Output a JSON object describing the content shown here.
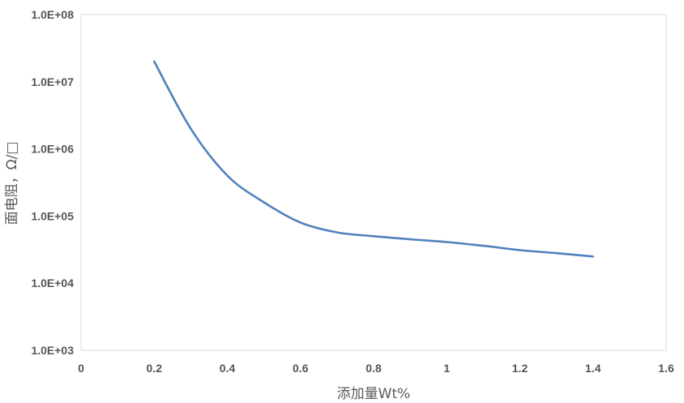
{
  "chart_data": {
    "type": "line",
    "title": "",
    "xlabel": "添加量Wt%",
    "ylabel": "面电阻，Ω/□",
    "xlim": [
      0,
      1.6
    ],
    "ylim": [
      1000,
      100000000
    ],
    "y_scale": "log",
    "x_ticks": [
      0,
      0.2,
      0.4,
      0.6,
      0.8,
      1,
      1.2,
      1.4,
      1.6
    ],
    "x_tick_labels": [
      "0",
      "0.2",
      "0.4",
      "0.6",
      "0.8",
      "1",
      "1.2",
      "1.4",
      "1.6"
    ],
    "y_ticks": [
      1000,
      10000,
      100000,
      1000000,
      10000000,
      100000000
    ],
    "y_tick_labels": [
      "1.0E+03",
      "1.0E+04",
      "1.0E+05",
      "1.0E+06",
      "1.0E+07",
      "1.0E+08"
    ],
    "grid": false,
    "legend": "none",
    "series": [
      {
        "color": "#4f81bd",
        "x": [
          0.2,
          0.3,
          0.4,
          0.5,
          0.6,
          0.7,
          0.8,
          0.9,
          1.0,
          1.1,
          1.2,
          1.3,
          1.4
        ],
        "y": [
          20000000,
          2000000,
          400000,
          160000,
          80000,
          57000,
          50000,
          45000,
          41000,
          36000,
          31000,
          28000,
          25000
        ]
      }
    ]
  }
}
